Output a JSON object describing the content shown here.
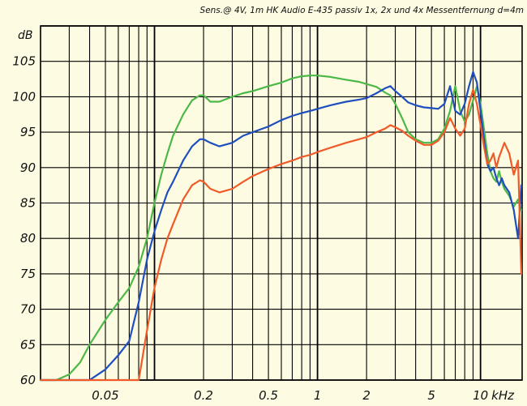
{
  "chart_data": {
    "type": "line",
    "title": "Sens.@ 4V, 1m HK Audio E-435 passiv 1x,   2x und 4x Messentfernung d=4m",
    "ylabel": "dB",
    "xunit": "kHz",
    "xscale": "log",
    "xlim": [
      0.02,
      18
    ],
    "ylim": [
      60,
      110
    ],
    "grid": true,
    "yticks": [
      60,
      65,
      70,
      75,
      80,
      85,
      90,
      95,
      100,
      105
    ],
    "ytick_labels": [
      "60",
      "65",
      "70",
      "75",
      "80",
      "85",
      "90",
      "95",
      "100",
      "105"
    ],
    "xticks": [
      0.05,
      0.2,
      0.5,
      1,
      2,
      5,
      10
    ],
    "xtick_labels": [
      "0.05",
      "0.2",
      "0.5",
      "1",
      "2",
      "5",
      "10"
    ],
    "colors": {
      "background": "#fdfbe2",
      "grid": "#000000"
    },
    "series": [
      {
        "color": "#4cb848",
        "x": [
          0.02,
          0.025,
          0.03,
          0.035,
          0.04,
          0.05,
          0.06,
          0.07,
          0.08,
          0.09,
          0.1,
          0.11,
          0.12,
          0.13,
          0.15,
          0.17,
          0.19,
          0.2,
          0.22,
          0.25,
          0.3,
          0.35,
          0.4,
          0.5,
          0.6,
          0.7,
          0.8,
          0.9,
          1.0,
          1.2,
          1.5,
          1.8,
          2.0,
          2.3,
          2.6,
          2.8,
          3.0,
          3.3,
          3.6,
          4.0,
          4.5,
          5.0,
          5.5,
          6.0,
          6.5,
          7.0,
          7.5,
          8.0,
          8.5,
          9.0,
          9.5,
          10.0,
          10.5,
          11.0,
          11.5,
          12.0,
          12.5,
          13.0,
          13.5,
          14.0,
          15.0,
          16.0,
          17.0,
          17.8
        ],
        "y": [
          60,
          60,
          60.8,
          62.5,
          65,
          68.5,
          71,
          73,
          76,
          80,
          85,
          89,
          92,
          94.5,
          97.5,
          99.5,
          100.2,
          100.2,
          99.3,
          99.3,
          100,
          100.5,
          100.8,
          101.5,
          102,
          102.6,
          102.9,
          103,
          103,
          102.8,
          102.4,
          102.1,
          101.8,
          101.4,
          100.6,
          100.2,
          99,
          97,
          95,
          94,
          93.5,
          93.5,
          94,
          95.5,
          98,
          101.5,
          98,
          96.5,
          97.5,
          99.5,
          101.5,
          99,
          95.5,
          92,
          89.5,
          88.5,
          88,
          89.5,
          88,
          87,
          86,
          84.5,
          85.5,
          84
        ]
      },
      {
        "color": "#1f4fbe",
        "x": [
          0.02,
          0.025,
          0.03,
          0.035,
          0.04,
          0.05,
          0.06,
          0.07,
          0.08,
          0.09,
          0.1,
          0.11,
          0.12,
          0.13,
          0.15,
          0.17,
          0.19,
          0.2,
          0.22,
          0.25,
          0.3,
          0.35,
          0.4,
          0.5,
          0.6,
          0.7,
          0.8,
          0.9,
          1.0,
          1.2,
          1.5,
          1.8,
          2.0,
          2.3,
          2.6,
          2.8,
          3.0,
          3.3,
          3.6,
          4.0,
          4.5,
          5.0,
          5.5,
          6.0,
          6.5,
          7.0,
          7.5,
          8.0,
          8.5,
          9.0,
          9.5,
          10.0,
          10.5,
          11.0,
          11.5,
          12.0,
          12.5,
          13.0,
          13.5,
          14.0,
          15.0,
          16.0,
          17.0,
          17.8
        ],
        "y": [
          60,
          60,
          60,
          60,
          60,
          61.5,
          63.5,
          65.5,
          71,
          77,
          81,
          84,
          86.5,
          88,
          91,
          93,
          94,
          94,
          93.5,
          93,
          93.5,
          94.5,
          95,
          95.8,
          96.7,
          97.3,
          97.7,
          98,
          98.3,
          98.8,
          99.3,
          99.6,
          99.8,
          100.5,
          101.2,
          101.5,
          100.8,
          100,
          99.2,
          98.8,
          98.5,
          98.4,
          98.3,
          99,
          101.5,
          98,
          97.5,
          99,
          101.5,
          103.5,
          102,
          98,
          94,
          90.5,
          89.5,
          90,
          88.5,
          87.5,
          88.5,
          87.5,
          86.5,
          84,
          80,
          87.5
        ]
      },
      {
        "color": "#f05a28",
        "x": [
          0.02,
          0.025,
          0.03,
          0.035,
          0.04,
          0.05,
          0.06,
          0.07,
          0.08,
          0.09,
          0.1,
          0.11,
          0.12,
          0.13,
          0.15,
          0.17,
          0.19,
          0.2,
          0.22,
          0.25,
          0.3,
          0.35,
          0.4,
          0.5,
          0.6,
          0.7,
          0.8,
          0.9,
          1.0,
          1.2,
          1.5,
          1.8,
          2.0,
          2.3,
          2.6,
          2.8,
          3.0,
          3.3,
          3.6,
          4.0,
          4.5,
          5.0,
          5.5,
          6.0,
          6.5,
          7.0,
          7.5,
          8.0,
          8.5,
          9.0,
          9.5,
          10.0,
          10.5,
          11.0,
          11.5,
          12.0,
          12.5,
          13.0,
          13.5,
          14.0,
          15.0,
          16.0,
          17.0,
          17.8
        ],
        "y": [
          60,
          60,
          60,
          60,
          60,
          60,
          60,
          60,
          60,
          67,
          73,
          77,
          80,
          82,
          85.5,
          87.5,
          88.2,
          88,
          87,
          86.5,
          87,
          88,
          88.8,
          89.8,
          90.5,
          91,
          91.5,
          91.8,
          92.2,
          92.8,
          93.5,
          94,
          94.3,
          95,
          95.5,
          96,
          95.7,
          95.2,
          94.5,
          93.8,
          93.2,
          93.2,
          93.8,
          95,
          97,
          95.5,
          94.5,
          95.5,
          99,
          101,
          99,
          96,
          93,
          90.5,
          91,
          92,
          90,
          91.5,
          92.5,
          93.5,
          92,
          89,
          91,
          75
        ]
      }
    ]
  }
}
